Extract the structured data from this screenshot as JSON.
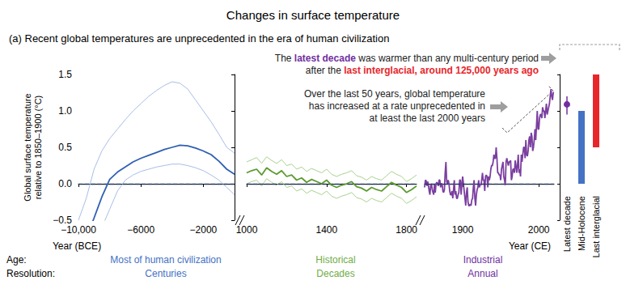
{
  "chart_data": {
    "type": "line",
    "title": "Changes in surface temperature",
    "subtitle": "(a) Recent global temperatures are unprecedented in the era of human civilization",
    "ylabel": "Global surface temperature\nrelative to 1850–1900 (°C)",
    "ylim": [
      -0.5,
      1.5
    ],
    "yticks": [
      {
        "value": -0.5,
        "label": "−0.5"
      },
      {
        "value": 0,
        "label": "0.0"
      },
      0.5,
      {
        "value": 1,
        "label": "1.0"
      },
      1.5
    ],
    "grid": false,
    "reference_line": 0,
    "row_labels": [
      "Age:",
      "Resolution:"
    ],
    "panels": [
      {
        "xlabel": "Year (BCE)",
        "age": "Most of human civilization",
        "resolution": "Centuries",
        "color": "#4472c4",
        "xlim": [
          -10000,
          0
        ],
        "xticks": [
          {
            "value": -10000,
            "label": "−10,000"
          },
          {
            "value": -6000,
            "label": "−6000"
          },
          {
            "value": -2000,
            "label": "−2000"
          }
        ],
        "x": [
          -10000,
          -9500,
          -9000,
          -8500,
          -8000,
          -7500,
          -7000,
          -6500,
          -6000,
          -5500,
          -5000,
          -4500,
          -4000,
          -3500,
          -3000,
          -2500,
          -2000,
          -1500,
          -1000,
          -500,
          0
        ],
        "series": [
          {
            "color": "#a8bde6",
            "line_style": "thin",
            "values": [
              -0.5,
              -0.2,
              0.2,
              0.45,
              0.62,
              0.75,
              0.88,
              1.0,
              1.1,
              1.2,
              1.28,
              1.35,
              1.4,
              1.38,
              1.3,
              1.15,
              1.0,
              0.85,
              0.68,
              0.5,
              0.42
            ]
          },
          {
            "color": "#a8bde6",
            "line_style": "thin",
            "values": [
              -1.5,
              -1.2,
              -0.9,
              -0.6,
              -0.35,
              -0.1,
              0.05,
              0.12,
              0.17,
              0.2,
              0.23,
              0.25,
              0.27,
              0.27,
              0.25,
              0.22,
              0.18,
              0.12,
              0.05,
              -0.05,
              -0.15
            ]
          },
          {
            "color": "#2f5fb3",
            "line_style": "solid",
            "values": [
              -1.0,
              -0.75,
              -0.47,
              -0.18,
              0.06,
              0.16,
              0.23,
              0.3,
              0.35,
              0.39,
              0.43,
              0.47,
              0.5,
              0.53,
              0.52,
              0.49,
              0.45,
              0.4,
              0.31,
              0.2,
              0.13
            ]
          }
        ]
      },
      {
        "age": "Historical",
        "resolution": "Decades",
        "color": "#70ad47",
        "xlim": [
          1000,
          1850
        ],
        "xticks": [
          1000,
          1400,
          1800
        ],
        "x": [
          1000,
          1025,
          1050,
          1075,
          1100,
          1125,
          1150,
          1175,
          1200,
          1225,
          1250,
          1275,
          1300,
          1325,
          1350,
          1375,
          1400,
          1425,
          1450,
          1475,
          1500,
          1525,
          1550,
          1575,
          1600,
          1625,
          1650,
          1675,
          1700,
          1725,
          1750,
          1775,
          1800,
          1825,
          1850
        ],
        "series": [
          {
            "color": "#a9d18e",
            "line_style": "thin",
            "values": [
              0.3,
              0.33,
              0.36,
              0.28,
              0.37,
              0.32,
              0.28,
              0.33,
              0.25,
              0.27,
              0.2,
              0.23,
              0.17,
              0.21,
              0.18,
              0.15,
              0.2,
              0.13,
              0.1,
              0.13,
              0.15,
              0.18,
              0.11,
              0.09,
              0.05,
              0.1,
              0.07,
              0.05,
              0.11,
              0.17,
              0.13,
              0.1,
              0.03,
              0.07,
              0.12
            ]
          },
          {
            "color": "#a9d18e",
            "line_style": "thin",
            "values": [
              0.0,
              0.03,
              0.05,
              -0.03,
              0.07,
              0.02,
              -0.02,
              0.03,
              -0.05,
              -0.03,
              -0.1,
              -0.07,
              -0.13,
              -0.09,
              -0.12,
              -0.15,
              -0.1,
              -0.17,
              -0.2,
              -0.17,
              -0.15,
              -0.12,
              -0.19,
              -0.21,
              -0.25,
              -0.2,
              -0.23,
              -0.25,
              -0.19,
              -0.13,
              -0.17,
              -0.2,
              -0.27,
              -0.23,
              -0.18
            ]
          },
          {
            "color": "#5b9b2f",
            "line_style": "solid",
            "values": [
              0.15,
              0.18,
              0.2,
              0.12,
              0.22,
              0.17,
              0.13,
              0.18,
              0.1,
              0.12,
              0.05,
              0.08,
              0.02,
              0.06,
              0.03,
              0.0,
              0.05,
              -0.02,
              -0.05,
              -0.02,
              0.0,
              0.03,
              -0.04,
              -0.06,
              -0.1,
              -0.05,
              -0.08,
              -0.1,
              -0.04,
              0.02,
              -0.02,
              -0.05,
              -0.12,
              -0.08,
              -0.03
            ]
          }
        ]
      },
      {
        "xlabel": "Year (CE)",
        "age": "Industrial",
        "resolution": "Annual",
        "color": "#7030a0",
        "xlim": [
          1850,
          2020
        ],
        "xticks": [
          1900,
          2000
        ],
        "x": [
          1850,
          1851,
          1852,
          1853,
          1854,
          1855,
          1856,
          1857,
          1858,
          1859,
          1860,
          1861,
          1862,
          1863,
          1864,
          1865,
          1866,
          1867,
          1868,
          1869,
          1870,
          1871,
          1872,
          1873,
          1874,
          1875,
          1876,
          1877,
          1878,
          1879,
          1880,
          1881,
          1882,
          1883,
          1884,
          1885,
          1886,
          1887,
          1888,
          1889,
          1890,
          1891,
          1892,
          1893,
          1894,
          1895,
          1896,
          1897,
          1898,
          1899,
          1900,
          1901,
          1902,
          1903,
          1904,
          1905,
          1906,
          1907,
          1908,
          1909,
          1910,
          1911,
          1912,
          1913,
          1914,
          1915,
          1916,
          1917,
          1918,
          1919,
          1920,
          1921,
          1922,
          1923,
          1924,
          1925,
          1926,
          1927,
          1928,
          1929,
          1930,
          1931,
          1932,
          1933,
          1934,
          1935,
          1936,
          1937,
          1938,
          1939,
          1940,
          1941,
          1942,
          1943,
          1944,
          1945,
          1946,
          1947,
          1948,
          1949,
          1950,
          1951,
          1952,
          1953,
          1954,
          1955,
          1956,
          1957,
          1958,
          1959,
          1960,
          1961,
          1962,
          1963,
          1964,
          1965,
          1966,
          1967,
          1968,
          1969,
          1970,
          1971,
          1972,
          1973,
          1974,
          1975,
          1976,
          1977,
          1978,
          1979,
          1980,
          1981,
          1982,
          1983,
          1984,
          1985,
          1986,
          1987,
          1988,
          1989,
          1990,
          1991,
          1992,
          1993,
          1994,
          1995,
          1996,
          1997,
          1998,
          1999,
          2000,
          2001,
          2002,
          2003,
          2004,
          2005,
          2006,
          2007,
          2008,
          2009,
          2010,
          2011,
          2012,
          2013,
          2014,
          2015,
          2016,
          2017,
          2018,
          2019,
          2020
        ],
        "series": [
          {
            "color": "#7b3fa0",
            "line_style": "solid",
            "values": [
              -0.05,
              0.05,
              0.04,
              -0.03,
              0.03,
              -0.02,
              -0.1,
              -0.15,
              -0.02,
              0.0,
              -0.08,
              -0.12,
              -0.15,
              0.0,
              -0.12,
              0.0,
              0.02,
              0.0,
              -0.03,
              0.05,
              0.05,
              -0.05,
              0.0,
              0.0,
              -0.1,
              -0.12,
              -0.08,
              0.15,
              0.3,
              0.03,
              0.0,
              0.05,
              0.0,
              -0.1,
              -0.15,
              -0.15,
              -0.1,
              -0.2,
              -0.08,
              0.05,
              -0.15,
              -0.1,
              -0.2,
              -0.2,
              -0.15,
              -0.12,
              0.05,
              0.05,
              -0.15,
              0.0,
              0.1,
              0.0,
              -0.1,
              -0.2,
              -0.3,
              -0.12,
              -0.05,
              -0.25,
              -0.3,
              -0.3,
              -0.28,
              -0.3,
              -0.22,
              -0.2,
              -0.05,
              0.05,
              -0.2,
              -0.3,
              -0.15,
              -0.08,
              -0.05,
              0.05,
              -0.05,
              0.0,
              -0.02,
              0.05,
              0.15,
              0.05,
              0.05,
              -0.1,
              0.1,
              0.12,
              0.1,
              -0.05,
              0.1,
              0.05,
              0.1,
              0.2,
              0.25,
              0.25,
              0.3,
              0.4,
              0.35,
              0.35,
              0.5,
              0.35,
              0.15,
              0.15,
              0.12,
              0.12,
              0.05,
              0.2,
              0.25,
              0.3,
              0.1,
              0.05,
              -0.02,
              0.3,
              0.35,
              0.3,
              0.25,
              0.3,
              0.3,
              0.32,
              0.05,
              0.1,
              0.2,
              0.2,
              0.15,
              0.32,
              0.25,
              0.15,
              0.25,
              0.4,
              0.15,
              0.2,
              0.1,
              0.4,
              0.3,
              0.4,
              0.5,
              0.5,
              0.35,
              0.6,
              0.4,
              0.38,
              0.45,
              0.6,
              0.65,
              0.5,
              0.7,
              0.65,
              0.45,
              0.5,
              0.6,
              0.75,
              0.6,
              0.8,
              1.0,
              0.75,
              0.75,
              0.9,
              0.95,
              0.95,
              0.9,
              1.05,
              1.0,
              1.0,
              0.9,
              1.0,
              1.1,
              0.95,
              1.0,
              1.05,
              1.1,
              1.2,
              1.3,
              1.2,
              1.15,
              1.25,
              1.25
            ]
          }
        ]
      }
    ],
    "periods": [
      {
        "name": "Latest decade",
        "type": "scatter",
        "color": "#7030a0",
        "value": 1.09,
        "low": 0.95,
        "high": 1.2
      },
      {
        "name": "Mid-Holocene",
        "type": "bar",
        "color": "#4472c4",
        "low": 0.0,
        "high": 1.0
      },
      {
        "name": "Last interglacial",
        "type": "bar",
        "color": "#e8262a",
        "low": 0.5,
        "high": 1.5
      }
    ],
    "annotations": [
      {
        "lines": [
          [
            {
              "text": "The "
            },
            {
              "text": "latest decade",
              "color": "#7030a0"
            },
            {
              "text": " was warmer than any multi-century period"
            }
          ],
          [
            {
              "text": "after the "
            },
            {
              "text": "last interglacial,",
              "color": "#e8262a"
            },
            {
              "text": " around 125,000 years ago",
              "color": "#e8262a"
            }
          ]
        ]
      },
      {
        "lines": [
          [
            {
              "text": "Over the last 50 years, global temperature"
            }
          ],
          [
            {
              "text": "has increased at a rate unprecedented in"
            }
          ],
          [
            {
              "text": "at least the last 2000 years"
            }
          ]
        ]
      }
    ]
  }
}
